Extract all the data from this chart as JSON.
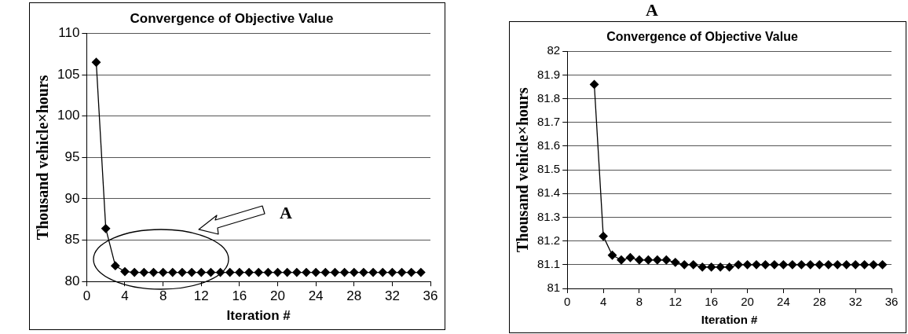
{
  "chart_data": [
    {
      "type": "line",
      "title": "Convergence of Objective Value",
      "xlabel": "Iteration #",
      "ylabel": "Thousand vehicle×hours",
      "x": [
        1,
        2,
        3,
        4,
        5,
        6,
        7,
        8,
        9,
        10,
        11,
        12,
        13,
        14,
        15,
        16,
        17,
        18,
        19,
        20,
        21,
        22,
        23,
        24,
        25,
        26,
        27,
        28,
        29,
        30,
        31,
        32,
        33,
        34,
        35
      ],
      "series": [
        {
          "color": "#000000",
          "values": [
            106.5,
            86.4,
            81.9,
            81.2,
            81.1,
            81.1,
            81.1,
            81.1,
            81.1,
            81.1,
            81.1,
            81.1,
            81.1,
            81.1,
            81.1,
            81.1,
            81.1,
            81.1,
            81.1,
            81.1,
            81.1,
            81.1,
            81.1,
            81.1,
            81.1,
            81.1,
            81.1,
            81.1,
            81.1,
            81.1,
            81.1,
            81.1,
            81.1,
            81.1,
            81.1
          ]
        }
      ],
      "xlim": [
        0,
        36
      ],
      "xticks": [
        0,
        4,
        8,
        12,
        16,
        20,
        24,
        28,
        32,
        36
      ],
      "ylim": [
        80,
        110
      ],
      "yticks": [
        80,
        85,
        90,
        95,
        100,
        105,
        110
      ],
      "grid": "y",
      "marker": "diamond",
      "annotations": [
        "A"
      ]
    },
    {
      "type": "line",
      "title": "Convergence of Objective Value",
      "xlabel": "Iteration #",
      "ylabel": "Thousand vehicle×hours",
      "x": [
        3,
        4,
        5,
        6,
        7,
        8,
        9,
        10,
        11,
        12,
        13,
        14,
        15,
        16,
        17,
        18,
        19,
        20,
        21,
        22,
        23,
        24,
        25,
        26,
        27,
        28,
        29,
        30,
        31,
        32,
        33,
        34,
        35
      ],
      "series": [
        {
          "color": "#000000",
          "values": [
            81.86,
            81.22,
            81.14,
            81.12,
            81.13,
            81.12,
            81.12,
            81.12,
            81.12,
            81.11,
            81.1,
            81.1,
            81.09,
            81.09,
            81.09,
            81.09,
            81.1,
            81.1,
            81.1,
            81.1,
            81.1,
            81.1,
            81.1,
            81.1,
            81.1,
            81.1,
            81.1,
            81.1,
            81.1,
            81.1,
            81.1,
            81.1,
            81.1
          ]
        }
      ],
      "xlim": [
        0,
        36
      ],
      "xticks": [
        0,
        4,
        8,
        12,
        16,
        20,
        24,
        28,
        32,
        36
      ],
      "ylim": [
        81,
        82
      ],
      "yticks": [
        81,
        81.1,
        81.2,
        81.3,
        81.4,
        81.5,
        81.6,
        81.7,
        81.8,
        81.9,
        82
      ],
      "grid": "y",
      "marker": "diamond",
      "annotations": [
        "A"
      ]
    }
  ]
}
